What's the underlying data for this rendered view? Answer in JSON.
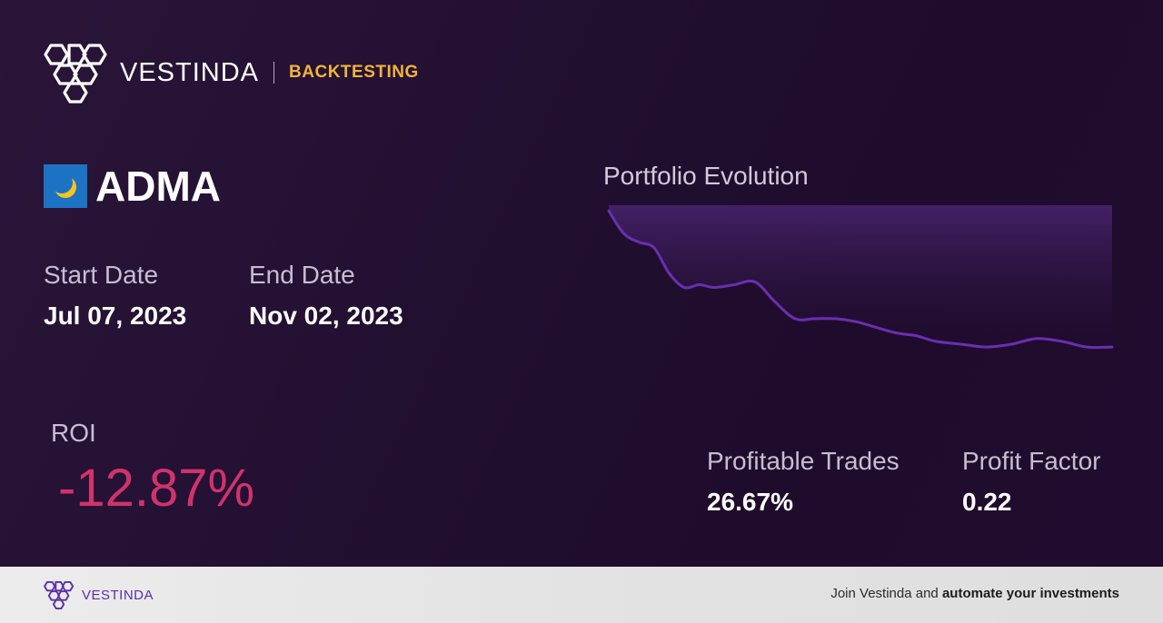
{
  "brand": {
    "name": "VESTINDA",
    "section": "BACKTESTING"
  },
  "ticker": {
    "symbol": "ADMA",
    "icon": "crescent-moon-logo-icon"
  },
  "dates": {
    "start_label": "Start Date",
    "start_value": "Jul 07, 2023",
    "end_label": "End Date",
    "end_value": "Nov 02, 2023"
  },
  "roi": {
    "label": "ROI",
    "value": "-12.87%"
  },
  "chart": {
    "title": "Portfolio Evolution"
  },
  "stats": {
    "profitable_label": "Profitable Trades",
    "profitable_value": "26.67%",
    "factor_label": "Profit Factor",
    "factor_value": "0.22"
  },
  "footer": {
    "brand": "VESTINDA",
    "cta_prefix": "Join Vestinda and ",
    "cta_bold": "automate your investments"
  },
  "colors": {
    "accent_gold": "#f2b33a",
    "roi_negative": "#d0336c",
    "chart_line": "#6a2fb0",
    "footer_brand": "#5a2ea6"
  },
  "chart_data": {
    "type": "area",
    "title": "Portfolio Evolution",
    "xlabel": "",
    "ylabel": "",
    "grid": false,
    "legend": "none",
    "x": [
      0,
      3,
      6,
      9,
      12,
      15,
      18,
      21,
      25,
      29,
      33,
      37,
      41,
      45,
      49,
      53,
      57,
      61,
      65,
      70,
      75,
      80,
      85,
      90,
      95,
      100
    ],
    "y": [
      100,
      92,
      89,
      87,
      78,
      73,
      74,
      73,
      74,
      75,
      68,
      62,
      62,
      62,
      61,
      59,
      57,
      56,
      54,
      53,
      52,
      53,
      55,
      54,
      52,
      52
    ],
    "ylim": [
      45,
      102
    ]
  }
}
